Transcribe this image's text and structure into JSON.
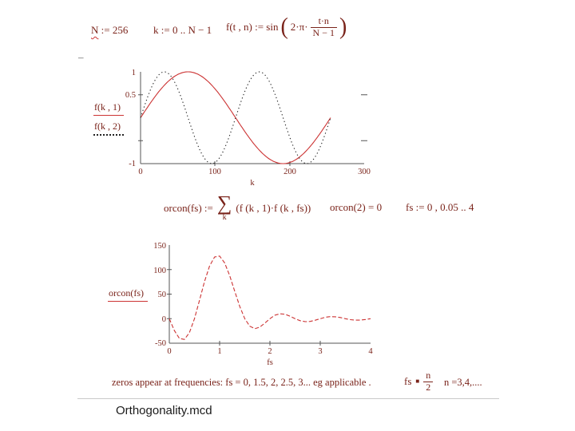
{
  "colors": {
    "math_text": "#7a231a",
    "curve_red": "#cc3333",
    "curve_dotted": "#222222",
    "axis": "#555555"
  },
  "header": {
    "margin_dash": "–",
    "eq_n_lhs": "N",
    "eq_n_rest": " := 256",
    "eq_k": "k := 0 .. N − 1",
    "eq_f_prefix": "f(t , n) := sin",
    "paren_open": "(",
    "paren_close": ")",
    "eq_f_coeff": "2·π·",
    "eq_f_num": "t·n",
    "eq_f_den": "N − 1"
  },
  "middle": {
    "orcon_lhs": "orcon(fs) :=",
    "sigma": "∑",
    "sigma_sub": "k",
    "orcon_body": "(f (k , 1)·f (k , fs))",
    "orcon_eval": "orcon(2)  = 0",
    "fs_range": "fs := 0 , 0.05 .. 4"
  },
  "footer": {
    "zeros_text": "zeros appear at frequencies: fs = 0, 1.5, 2, 2.5, 3... eg applicable .",
    "fs_lhs": "fs",
    "equiv": "■",
    "frac_num": "n",
    "frac_den": "2",
    "n_values": "n =3,4,....",
    "caption": "Orthogonality.mcd"
  },
  "chart_data": [
    {
      "type": "line",
      "title": "",
      "xlabel": "k",
      "ylabel": "",
      "xlim": [
        0,
        300
      ],
      "ylim": [
        -1,
        1
      ],
      "x_ticks": [
        "0",
        "100",
        "200",
        "300"
      ],
      "y_ticks": [
        "1",
        "0.5",
        "-1"
      ],
      "grid": false,
      "legend_position": "left",
      "N": 256,
      "k_max": 255,
      "series": [
        {
          "name": "f(k , 1)",
          "n": 1,
          "style": "solid",
          "color": "#cc3333",
          "formula": "f(k,n) = sin(2·π·k·n/(N−1))"
        },
        {
          "name": "f(k , 2)",
          "n": 2,
          "style": "dotted",
          "color": "#222222",
          "formula": "f(k,n) = sin(2·π·k·n/(N−1))"
        }
      ]
    },
    {
      "type": "line",
      "title": "",
      "xlabel": "fs",
      "ylabel": "",
      "xlim": [
        0,
        4
      ],
      "ylim": [
        -50,
        150
      ],
      "x_ticks": [
        "0",
        "1",
        "2",
        "3",
        "4"
      ],
      "y_ticks": [
        "150",
        "100",
        "50",
        "0",
        "-50"
      ],
      "grid": false,
      "legend_position": "left",
      "series": [
        {
          "name": "orcon(fs)",
          "style": "dashed",
          "color": "#cc3333"
        }
      ],
      "x": [
        0,
        0.1,
        0.2,
        0.3,
        0.4,
        0.5,
        0.6,
        0.7,
        0.8,
        0.9,
        1.0,
        1.1,
        1.2,
        1.3,
        1.4,
        1.5,
        1.6,
        1.7,
        1.8,
        1.9,
        2.0,
        2.1,
        2.2,
        2.3,
        2.4,
        2.5,
        2.6,
        2.7,
        2.8,
        2.9,
        3.0,
        3.1,
        3.2,
        3.3,
        3.4,
        3.5,
        3.6,
        3.7,
        3.8,
        3.9,
        4.0
      ],
      "y": [
        0,
        -24.1,
        -40.2,
        -42.4,
        -28.4,
        0,
        37.3,
        75.7,
        107.2,
        125.6,
        127.5,
        113.6,
        87.7,
        55.9,
        24.9,
        0,
        -15.3,
        -20.4,
        -17.2,
        -9.1,
        0,
        7.0,
        10.0,
        9.0,
        5.0,
        0,
        -4.1,
        -6.1,
        -5.6,
        -3.2,
        0,
        2.8,
        4.2,
        3.9,
        2.3,
        0,
        -2.0,
        -3.0,
        -2.9,
        -1.7,
        0
      ]
    }
  ]
}
